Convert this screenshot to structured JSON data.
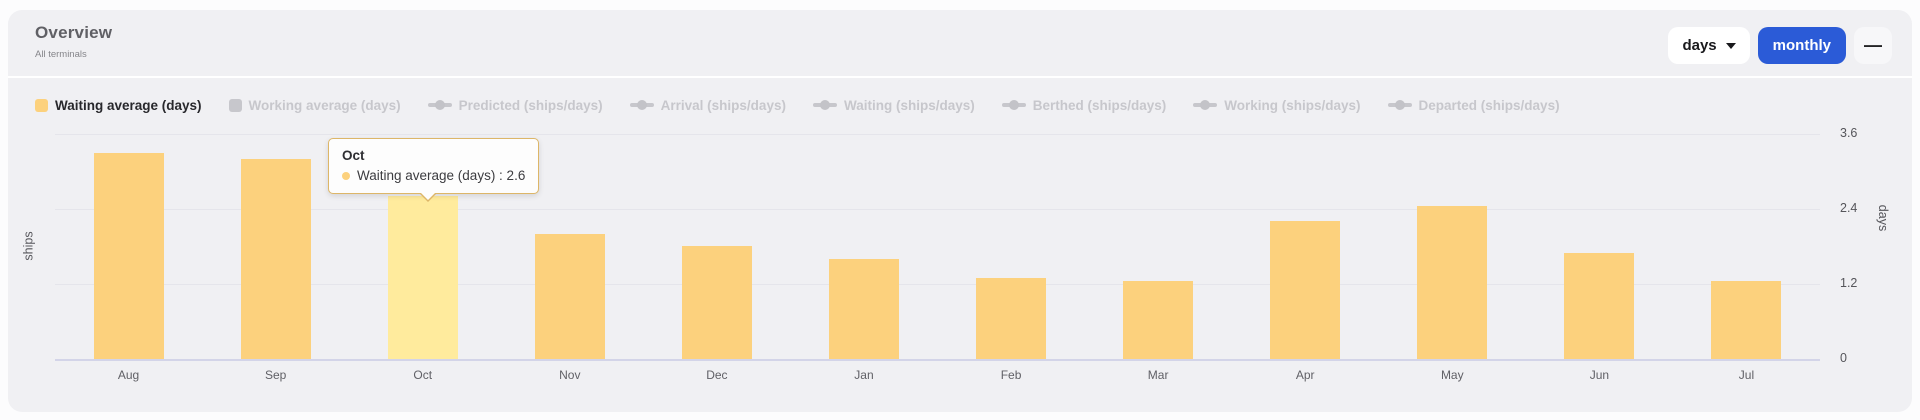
{
  "header": {
    "title": "Overview",
    "subtitle": "All terminals"
  },
  "controls": {
    "interval_value": "days",
    "granularity_label": "monthly",
    "collapse_glyph": "—"
  },
  "legend": {
    "items": [
      {
        "label": "Waiting average (days)",
        "active": true,
        "marker": "square"
      },
      {
        "label": "Working average (days)",
        "active": false,
        "marker": "square"
      },
      {
        "label": "Predicted (ships/days)",
        "active": false,
        "marker": "line-diamond"
      },
      {
        "label": "Arrival (ships/days)",
        "active": false,
        "marker": "line-diamond"
      },
      {
        "label": "Waiting (ships/days)",
        "active": false,
        "marker": "line-diamond"
      },
      {
        "label": "Berthed (ships/days)",
        "active": false,
        "marker": "line-diamond"
      },
      {
        "label": "Working (ships/days)",
        "active": false,
        "marker": "line-diamond"
      },
      {
        "label": "Departed (ships/days)",
        "active": false,
        "marker": "line-diamond"
      }
    ]
  },
  "chart_data": {
    "type": "bar",
    "categories": [
      "Aug",
      "Sep",
      "Oct",
      "Nov",
      "Dec",
      "Jan",
      "Feb",
      "Mar",
      "Apr",
      "May",
      "Jun",
      "Jul"
    ],
    "series": [
      {
        "name": "Waiting average (days)",
        "values": [
          3.3,
          3.2,
          2.6,
          2.0,
          1.8,
          1.6,
          1.3,
          1.25,
          2.2,
          2.45,
          1.7,
          1.25
        ]
      }
    ],
    "title": "",
    "xlabel": "",
    "ylabel_left": "ships",
    "ylabel_right": "days",
    "y_ticks_right": [
      0,
      1.2,
      2.4,
      3.6
    ],
    "ylim": [
      0,
      3.9
    ],
    "grid": true,
    "legend_position": "top",
    "highlighted_index": 2,
    "bar_color": "#fcd17d",
    "highlight_color": "#ffeb9d"
  },
  "tooltip": {
    "title": "Oct",
    "series_label": "Waiting average (days)",
    "value": "2.6",
    "text": "Waiting average (days) : 2.6"
  }
}
